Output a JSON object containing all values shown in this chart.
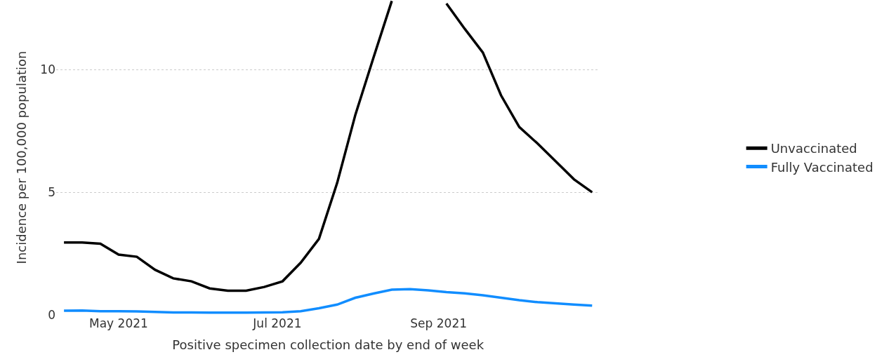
{
  "chart_data": {
    "type": "line",
    "xlabel": "Positive specimen collection date by end of week",
    "ylabel": "Incidence per 100,000 population",
    "x": [
      "2021-04-10",
      "2021-04-17",
      "2021-04-24",
      "2021-05-01",
      "2021-05-08",
      "2021-05-15",
      "2021-05-22",
      "2021-05-29",
      "2021-06-05",
      "2021-06-12",
      "2021-06-19",
      "2021-06-26",
      "2021-07-03",
      "2021-07-10",
      "2021-07-17",
      "2021-07-24",
      "2021-07-31",
      "2021-08-07",
      "2021-08-14",
      "2021-08-21",
      "2021-08-28",
      "2021-09-04",
      "2021-09-11",
      "2021-09-18",
      "2021-09-25",
      "2021-10-02",
      "2021-10-09",
      "2021-10-16",
      "2021-10-23",
      "2021-10-30"
    ],
    "series": [
      {
        "name": "Unvaccinated",
        "color": "#000000",
        "values": [
          2.95,
          2.95,
          2.9,
          2.46,
          2.37,
          1.84,
          1.49,
          1.37,
          1.08,
          0.99,
          0.99,
          1.14,
          1.37,
          2.13,
          3.1,
          5.38,
          8.16,
          10.5,
          12.8,
          null,
          null,
          12.7,
          11.67,
          10.7,
          8.95,
          7.66,
          6.99,
          6.26,
          5.53,
          5.0
        ]
      },
      {
        "name": "Fully Vaccinated",
        "color": "#118dff",
        "values": [
          0.17,
          0.18,
          0.15,
          0.15,
          0.14,
          0.12,
          0.1,
          0.1,
          0.09,
          0.09,
          0.09,
          0.1,
          0.11,
          0.15,
          0.27,
          0.42,
          0.7,
          0.87,
          1.03,
          1.05,
          1.0,
          0.93,
          0.88,
          0.8,
          0.7,
          0.6,
          0.52,
          0.47,
          0.42,
          0.38
        ]
      }
    ],
    "xlim": [
      "2021-04-07",
      "2021-11-02"
    ],
    "xticks": [
      {
        "value": "2021-05-01",
        "label": "May 2021"
      },
      {
        "value": "2021-07-01",
        "label": "Jul 2021"
      },
      {
        "value": "2021-09-01",
        "label": "Sep 2021"
      }
    ],
    "ylim": [
      0,
      12.84
    ],
    "yticks": [
      0,
      5,
      10
    ],
    "grid": "y",
    "legend": "right",
    "marker": "none",
    "line_style": "solid"
  }
}
